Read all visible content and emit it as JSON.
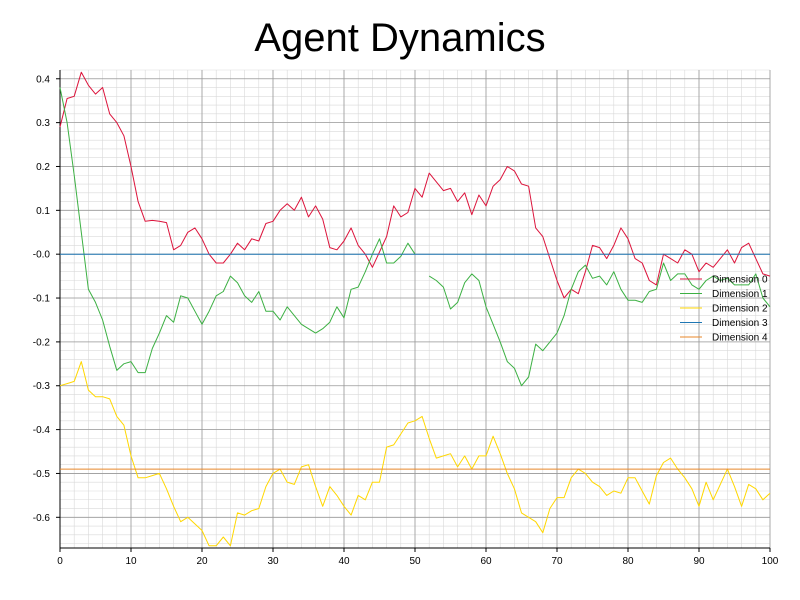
{
  "chart_data": {
    "type": "line",
    "title": "Agent Dynamics",
    "xlabel": "",
    "ylabel": "",
    "xlim": [
      0,
      100
    ],
    "ylim": [
      -0.67,
      0.42
    ],
    "grid": true,
    "legend_position": "right",
    "x_ticks": [
      "0",
      "10",
      "20",
      "30",
      "40",
      "50",
      "60",
      "70",
      "80",
      "90",
      "100"
    ],
    "y_ticks": [
      "0.4",
      "0.3",
      "0.2",
      "0.1",
      "-0.0",
      "-0.1",
      "-0.2",
      "-0.3",
      "-0.4",
      "-0.5",
      "-0.6"
    ],
    "x": [
      0,
      1,
      2,
      3,
      4,
      5,
      6,
      7,
      8,
      9,
      10,
      11,
      12,
      13,
      14,
      15,
      16,
      17,
      18,
      19,
      20,
      21,
      22,
      23,
      24,
      25,
      26,
      27,
      28,
      29,
      30,
      31,
      32,
      33,
      34,
      35,
      36,
      37,
      38,
      39,
      40,
      41,
      42,
      43,
      44,
      45,
      46,
      47,
      48,
      49,
      50,
      51,
      52,
      53,
      54,
      55,
      56,
      57,
      58,
      59,
      60,
      61,
      62,
      63,
      64,
      65,
      66,
      67,
      68,
      69,
      70,
      71,
      72,
      73,
      74,
      75,
      76,
      77,
      78,
      79,
      80,
      81,
      82,
      83,
      84,
      85,
      86,
      87,
      88,
      89,
      90,
      91,
      92,
      93,
      94,
      95,
      96,
      97,
      98,
      99,
      100
    ],
    "series": [
      {
        "name": "Dimension 0",
        "color": "#dc143c",
        "values": [
          0.29,
          0.355,
          0.36,
          0.415,
          0.385,
          0.365,
          0.38,
          0.32,
          0.3,
          0.27,
          0.2,
          0.12,
          0.075,
          0.077,
          0.075,
          0.072,
          0.01,
          0.02,
          0.05,
          0.06,
          0.035,
          0.0,
          -0.02,
          -0.02,
          0.0,
          0.025,
          0.01,
          0.035,
          0.03,
          0.07,
          0.075,
          0.1,
          0.115,
          0.1,
          0.13,
          0.085,
          0.11,
          0.08,
          0.015,
          0.01,
          0.03,
          0.06,
          0.02,
          0.0,
          -0.03,
          0.005,
          0.04,
          0.11,
          0.085,
          0.095,
          0.15,
          0.13,
          0.185,
          0.165,
          0.145,
          0.15,
          0.12,
          0.14,
          0.09,
          0.135,
          0.11,
          0.155,
          0.17,
          0.2,
          0.19,
          0.16,
          0.155,
          0.06,
          0.04,
          -0.01,
          -0.06,
          -0.1,
          -0.08,
          -0.09,
          -0.04,
          0.02,
          0.015,
          -0.01,
          0.02,
          0.06,
          0.035,
          -0.01,
          -0.02,
          -0.06,
          -0.07,
          0.0,
          -0.01,
          -0.02,
          0.01,
          0.0,
          -0.04,
          -0.02,
          -0.03,
          -0.01,
          0.01,
          -0.02,
          0.015,
          0.025,
          -0.01,
          -0.045,
          -0.05
        ]
      },
      {
        "name": "Dimension 1",
        "color": "#3cb043",
        "values": [
          0.38,
          0.3,
          0.18,
          0.05,
          -0.08,
          -0.11,
          -0.15,
          -0.21,
          -0.265,
          -0.25,
          -0.245,
          -0.27,
          -0.27,
          -0.215,
          -0.18,
          -0.14,
          -0.155,
          -0.095,
          -0.1,
          -0.13,
          -0.16,
          -0.13,
          -0.095,
          -0.085,
          -0.05,
          -0.065,
          -0.095,
          -0.11,
          -0.085,
          -0.13,
          -0.13,
          -0.15,
          -0.12,
          -0.14,
          -0.16,
          -0.17,
          -0.18,
          -0.17,
          -0.155,
          -0.12,
          -0.145,
          -0.08,
          -0.075,
          -0.04,
          0.0,
          0.035,
          -0.02,
          -0.02,
          -0.005,
          0.025,
          0.0,
          null,
          -0.05,
          -0.06,
          -0.075,
          -0.125,
          -0.11,
          -0.065,
          -0.045,
          -0.06,
          -0.12,
          -0.16,
          -0.2,
          -0.245,
          -0.26,
          -0.3,
          -0.28,
          -0.205,
          -0.22,
          -0.2,
          -0.18,
          -0.14,
          -0.08,
          -0.04,
          -0.025,
          -0.055,
          -0.05,
          -0.07,
          -0.04,
          -0.08,
          -0.105,
          -0.105,
          -0.11,
          -0.085,
          -0.08,
          -0.02,
          -0.06,
          -0.045,
          -0.045,
          -0.07,
          -0.08,
          -0.06,
          -0.05,
          -0.06,
          -0.055,
          -0.07,
          -0.07,
          -0.07,
          -0.045,
          -0.1,
          -0.12
        ]
      },
      {
        "name": "Dimension 2",
        "color": "#ffd700",
        "values": [
          -0.3,
          -0.295,
          -0.29,
          -0.245,
          -0.31,
          -0.325,
          -0.325,
          -0.33,
          -0.37,
          -0.39,
          -0.46,
          -0.51,
          -0.51,
          -0.505,
          -0.5,
          -0.535,
          -0.575,
          -0.61,
          -0.6,
          -0.615,
          -0.63,
          -0.665,
          -0.665,
          -0.645,
          -0.665,
          -0.59,
          -0.595,
          -0.585,
          -0.58,
          -0.53,
          -0.5,
          -0.49,
          -0.52,
          -0.525,
          -0.485,
          -0.48,
          -0.53,
          -0.575,
          -0.53,
          -0.55,
          -0.575,
          -0.595,
          -0.55,
          -0.56,
          -0.52,
          -0.52,
          -0.44,
          -0.435,
          -0.41,
          -0.385,
          -0.38,
          -0.37,
          -0.42,
          -0.465,
          -0.46,
          -0.455,
          -0.485,
          -0.46,
          -0.49,
          -0.46,
          -0.46,
          -0.415,
          -0.455,
          -0.5,
          -0.535,
          -0.59,
          -0.6,
          -0.61,
          -0.635,
          -0.58,
          -0.555,
          -0.555,
          -0.51,
          -0.49,
          -0.5,
          -0.52,
          -0.53,
          -0.55,
          -0.54,
          -0.545,
          -0.51,
          -0.51,
          -0.54,
          -0.57,
          -0.505,
          -0.475,
          -0.465,
          -0.49,
          -0.51,
          -0.535,
          -0.575,
          -0.52,
          -0.56,
          -0.525,
          -0.49,
          -0.53,
          -0.575,
          -0.525,
          -0.535,
          -0.56,
          -0.545
        ]
      },
      {
        "name": "Dimension 3",
        "color": "#1f77b4",
        "values": [
          0,
          0,
          0,
          0,
          0,
          0,
          0,
          0,
          0,
          0,
          0,
          0,
          0,
          0,
          0,
          0,
          0,
          0,
          0,
          0,
          0,
          0,
          0,
          0,
          0,
          0,
          0,
          0,
          0,
          0,
          0,
          0,
          0,
          0,
          0,
          0,
          0,
          0,
          0,
          0,
          0,
          0,
          0,
          0,
          0,
          0,
          0,
          0,
          0,
          0,
          0,
          0,
          0,
          0,
          0,
          0,
          0,
          0,
          0,
          0,
          0,
          0,
          0,
          0,
          0,
          0,
          0,
          0,
          0,
          0,
          0,
          0,
          0,
          0,
          0,
          0,
          0,
          0,
          0,
          0,
          0,
          0,
          0,
          0,
          0,
          0,
          0,
          0,
          0,
          0,
          0,
          0,
          0,
          0,
          0,
          0,
          0,
          0,
          0,
          0,
          0
        ]
      },
      {
        "name": "Dimension 4",
        "color": "#e8872a",
        "values": [
          -0.49,
          -0.49,
          -0.49,
          -0.49,
          -0.49,
          -0.49,
          -0.49,
          -0.49,
          -0.49,
          -0.49,
          -0.49,
          -0.49,
          -0.49,
          -0.49,
          -0.49,
          -0.49,
          -0.49,
          -0.49,
          -0.49,
          -0.49,
          -0.49,
          -0.49,
          -0.49,
          -0.49,
          -0.49,
          -0.49,
          -0.49,
          -0.49,
          -0.49,
          -0.49,
          -0.49,
          -0.49,
          -0.49,
          -0.49,
          -0.49,
          -0.49,
          -0.49,
          -0.49,
          -0.49,
          -0.49,
          -0.49,
          -0.49,
          -0.49,
          -0.49,
          -0.49,
          -0.49,
          -0.49,
          -0.49,
          -0.49,
          -0.49,
          -0.49,
          -0.49,
          -0.49,
          -0.49,
          -0.49,
          -0.49,
          -0.49,
          -0.49,
          -0.49,
          -0.49,
          -0.49,
          -0.49,
          -0.49,
          -0.49,
          -0.49,
          -0.49,
          -0.49,
          -0.49,
          -0.49,
          -0.49,
          -0.49,
          -0.49,
          -0.49,
          -0.49,
          -0.49,
          -0.49,
          -0.49,
          -0.49,
          -0.49,
          -0.49,
          -0.49,
          -0.49,
          -0.49,
          -0.49,
          -0.49,
          -0.49,
          -0.49,
          -0.49,
          -0.49,
          -0.49,
          -0.49,
          -0.49,
          -0.49,
          -0.49,
          -0.49,
          -0.49,
          -0.49,
          -0.49,
          -0.49,
          -0.49,
          -0.49
        ]
      }
    ]
  }
}
